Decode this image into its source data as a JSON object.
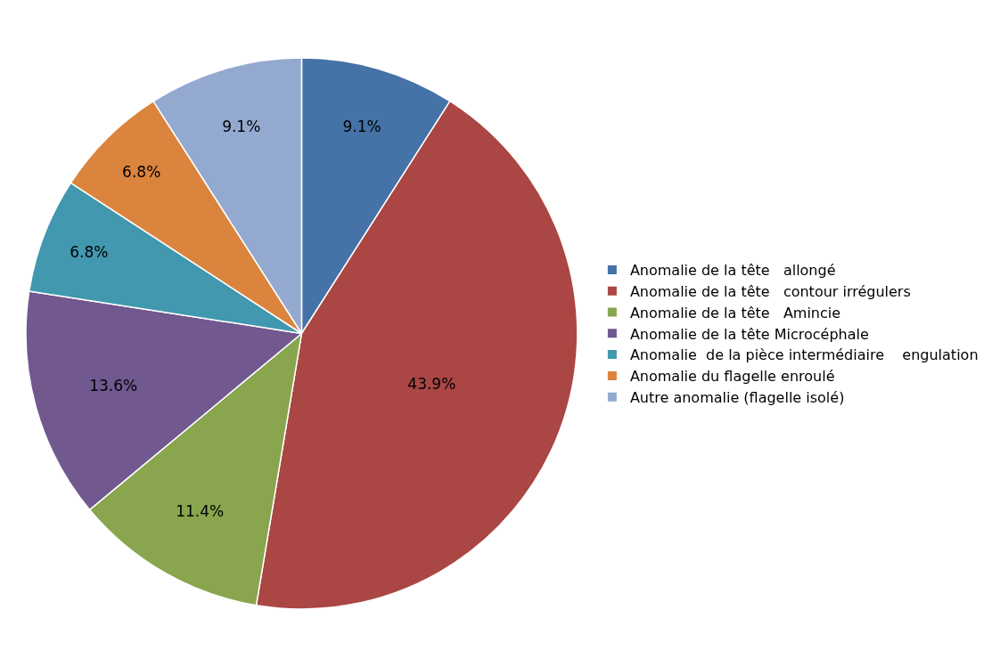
{
  "chart_data": {
    "type": "pie",
    "categories": [
      "Anomalie de la tête   allongé",
      "Anomalie de la tête   contour irrégulers",
      "Anomalie de la tête   Amincie",
      "Anomalie de la tête Microcéphale",
      "Anomalie  de la pièce intermédiaire    engulation",
      "Anomalie du flagelle enroulé",
      "Autre anomalie (flagelle isolé)"
    ],
    "values": [
      9.1,
      43.9,
      11.4,
      13.6,
      6.8,
      6.8,
      9.1
    ],
    "value_labels": [
      "9.1%",
      "43.9%",
      "11.4%",
      "13.6%",
      "6.8%",
      "6.8%",
      "9.1%"
    ],
    "colors": [
      "#4572a7",
      "#aa4643",
      "#89a54e",
      "#71588f",
      "#4198af",
      "#db843d",
      "#93a9cf"
    ],
    "legend": "right"
  }
}
